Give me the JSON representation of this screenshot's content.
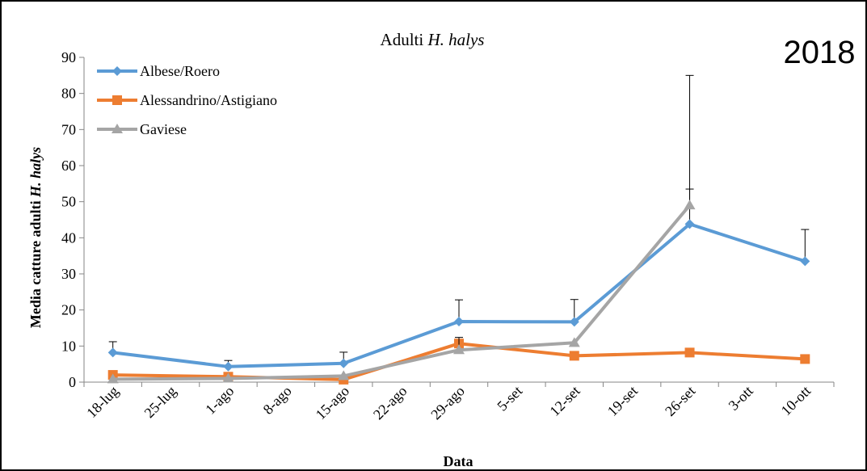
{
  "chart_data": {
    "type": "line",
    "title_prefix": "Adulti ",
    "title_species": "H. halys",
    "year_label": "2018",
    "xlabel": "Data",
    "ylabel_prefix": "Media catture adulti ",
    "ylabel_species": "H. halys",
    "x": [
      "18-lug",
      "25-lug",
      "1-ago",
      "8-ago",
      "15-ago",
      "22-ago",
      "29-ago",
      "5-set",
      "12-set",
      "19-set",
      "26-set",
      "3-ott",
      "10-ott"
    ],
    "ylim": [
      0,
      90
    ],
    "yticks": [
      0,
      10,
      20,
      30,
      40,
      50,
      60,
      70,
      80,
      90
    ],
    "legend_position": "top-left",
    "grid": false,
    "series": [
      {
        "name": "Albese/Roero",
        "color": "#5b9bd5",
        "marker": "diamond",
        "points": [
          {
            "x": "18-lug",
            "y": 8.2,
            "err": 3.0
          },
          {
            "x": "1-ago",
            "y": 4.3,
            "err": 1.7
          },
          {
            "x": "15-ago",
            "y": 5.2,
            "err": 3.1
          },
          {
            "x": "29-ago",
            "y": 16.8,
            "err": 6.0
          },
          {
            "x": "12-set",
            "y": 16.7,
            "err": 6.2
          },
          {
            "x": "26-set",
            "y": 43.8,
            "err": 9.7
          },
          {
            "x": "10-ott",
            "y": 33.5,
            "err": 8.8
          }
        ]
      },
      {
        "name": "Alessandrino/Astigiano",
        "color": "#ed7d31",
        "marker": "square",
        "points": [
          {
            "x": "18-lug",
            "y": 2.0,
            "err": 0
          },
          {
            "x": "1-ago",
            "y": 1.5,
            "err": 0
          },
          {
            "x": "15-ago",
            "y": 0.7,
            "err": 0
          },
          {
            "x": "29-ago",
            "y": 10.7,
            "err": 0
          },
          {
            "x": "12-set",
            "y": 7.3,
            "err": 0
          },
          {
            "x": "26-set",
            "y": 8.2,
            "err": 0
          },
          {
            "x": "10-ott",
            "y": 6.4,
            "err": 0
          }
        ]
      },
      {
        "name": "Gaviese",
        "color": "#a5a5a5",
        "marker": "triangle",
        "points": [
          {
            "x": "18-lug",
            "y": 0.8,
            "err": 0
          },
          {
            "x": "1-ago",
            "y": 1.0,
            "err": 0
          },
          {
            "x": "15-ago",
            "y": 1.7,
            "err": 0
          },
          {
            "x": "29-ago",
            "y": 8.9,
            "err": 3.5
          },
          {
            "x": "12-set",
            "y": 10.9,
            "err": 0
          },
          {
            "x": "26-set",
            "y": 49.0,
            "err": 36.0
          },
          {
            "x": "10-ott",
            "y": null,
            "err": 0
          }
        ]
      }
    ]
  }
}
